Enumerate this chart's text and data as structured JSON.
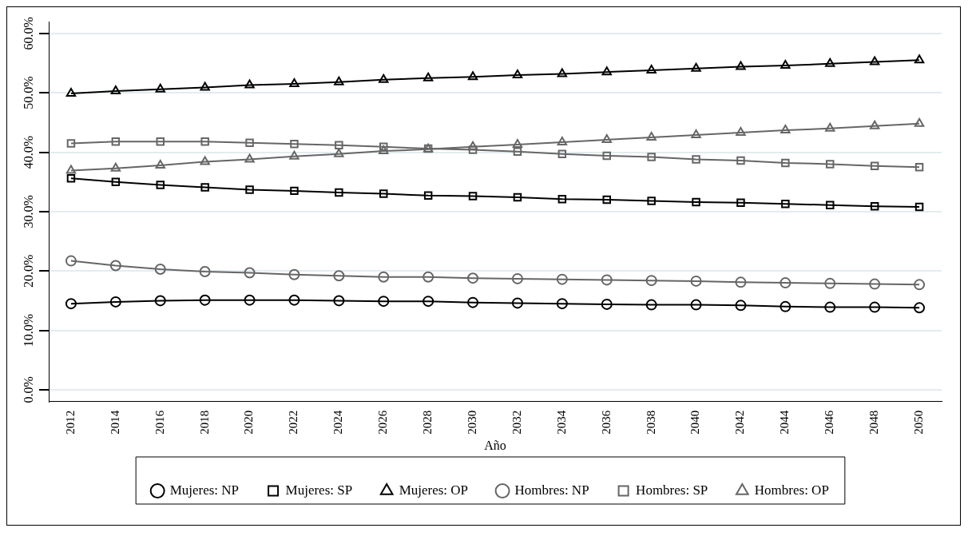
{
  "chart_data": {
    "type": "line",
    "xlabel": "Año",
    "categories": [
      "2012",
      "2014",
      "2016",
      "2018",
      "2020",
      "2022",
      "2024",
      "2026",
      "2028",
      "2030",
      "2032",
      "2034",
      "2036",
      "2038",
      "2040",
      "2042",
      "2044",
      "2046",
      "2048",
      "2050"
    ],
    "ylim": [
      -2,
      62
    ],
    "yticks": [
      {
        "value": 0,
        "label": "0.0%"
      },
      {
        "value": 10,
        "label": "10.0%"
      },
      {
        "value": 20,
        "label": "20.0%"
      },
      {
        "value": 30,
        "label": "30.0%"
      },
      {
        "value": 40,
        "label": "40.0%"
      },
      {
        "value": 50,
        "label": "50.0%"
      },
      {
        "value": 60,
        "label": "60.0%"
      }
    ],
    "grid": "y",
    "legend": "bottom",
    "line_style": "solid",
    "series": [
      {
        "name": "Mujeres: NP",
        "color": "#000000",
        "marker": "circle",
        "values": [
          14.5,
          14.8,
          15.0,
          15.1,
          15.1,
          15.1,
          15.0,
          14.9,
          14.9,
          14.7,
          14.6,
          14.5,
          14.4,
          14.3,
          14.3,
          14.2,
          14.0,
          13.9,
          13.9,
          13.8
        ]
      },
      {
        "name": "Mujeres: SP",
        "color": "#000000",
        "marker": "square",
        "values": [
          35.6,
          35.0,
          34.5,
          34.1,
          33.7,
          33.5,
          33.2,
          33.0,
          32.7,
          32.6,
          32.4,
          32.1,
          32.0,
          31.8,
          31.6,
          31.5,
          31.3,
          31.1,
          30.9,
          30.8
        ]
      },
      {
        "name": "Mujeres: OP",
        "color": "#000000",
        "marker": "triangle",
        "values": [
          49.9,
          50.3,
          50.6,
          50.9,
          51.3,
          51.5,
          51.8,
          52.2,
          52.5,
          52.7,
          53.0,
          53.2,
          53.5,
          53.8,
          54.1,
          54.4,
          54.6,
          54.9,
          55.2,
          55.5
        ]
      },
      {
        "name": "Hombres: NP",
        "color": "#666666",
        "marker": "circle",
        "values": [
          21.7,
          20.9,
          20.3,
          19.9,
          19.7,
          19.4,
          19.2,
          19.0,
          19.0,
          18.8,
          18.7,
          18.6,
          18.5,
          18.4,
          18.3,
          18.1,
          18.0,
          17.9,
          17.8,
          17.7
        ]
      },
      {
        "name": "Hombres: SP",
        "color": "#666666",
        "marker": "square",
        "values": [
          41.5,
          41.8,
          41.8,
          41.8,
          41.6,
          41.4,
          41.2,
          40.9,
          40.6,
          40.4,
          40.1,
          39.7,
          39.4,
          39.2,
          38.8,
          38.6,
          38.2,
          38.0,
          37.7,
          37.5
        ]
      },
      {
        "name": "Hombres: OP",
        "color": "#666666",
        "marker": "triangle",
        "values": [
          36.9,
          37.3,
          37.8,
          38.4,
          38.8,
          39.3,
          39.7,
          40.2,
          40.5,
          40.9,
          41.3,
          41.7,
          42.1,
          42.5,
          42.9,
          43.3,
          43.7,
          44.0,
          44.4,
          44.8
        ]
      }
    ]
  }
}
